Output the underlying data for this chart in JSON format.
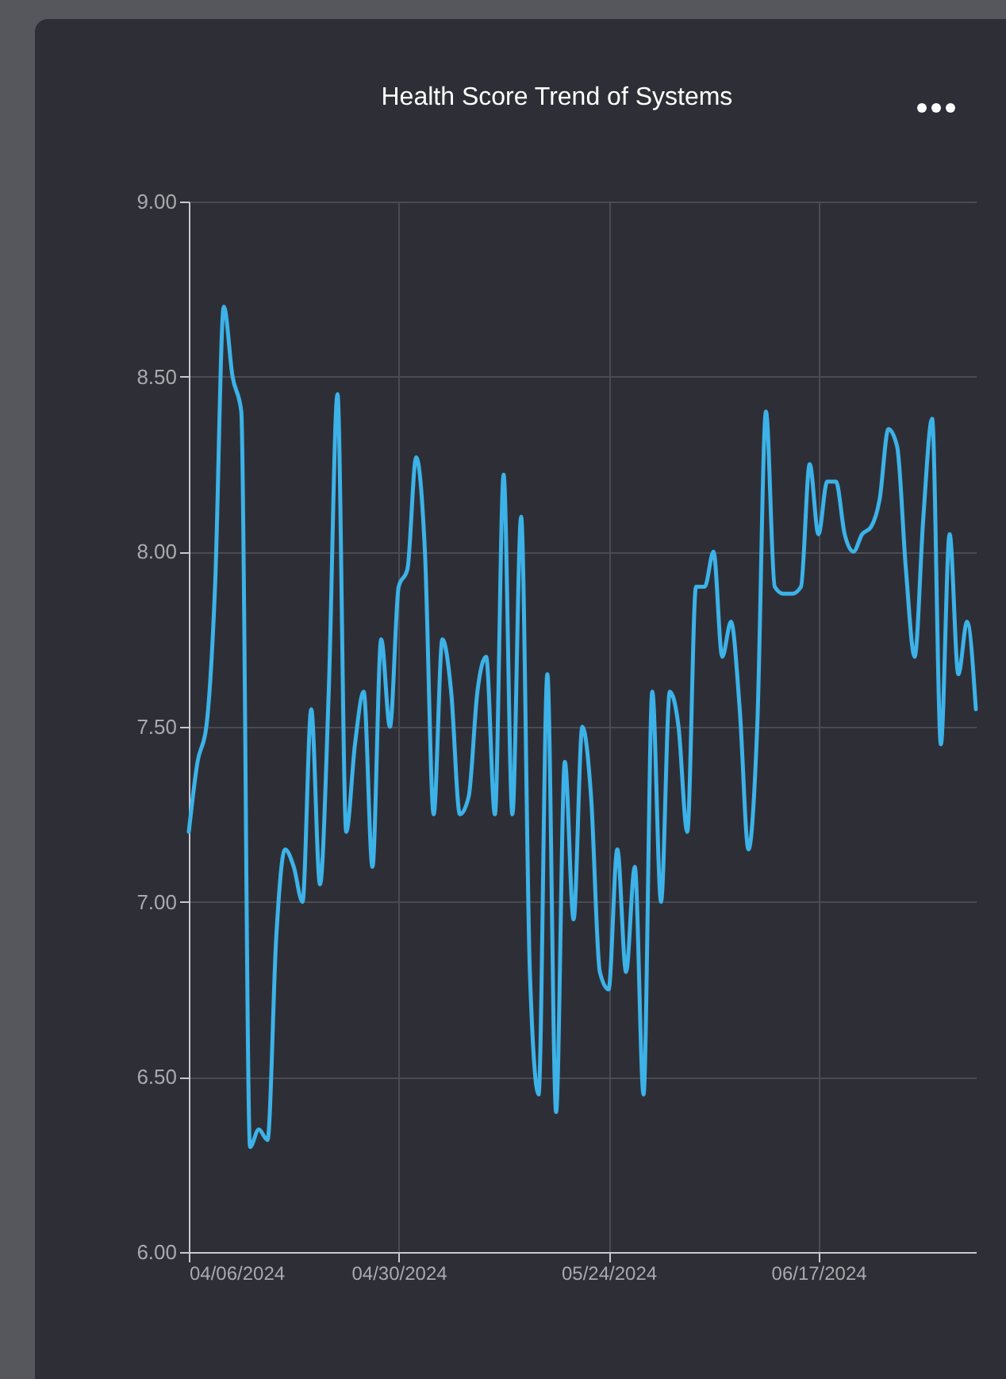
{
  "chart_data": {
    "type": "line",
    "title": "Health Score Trend of Systems",
    "x": [
      "2024-04-06",
      "2024-04-07",
      "2024-04-08",
      "2024-04-09",
      "2024-04-10",
      "2024-04-11",
      "2024-04-12",
      "2024-04-13",
      "2024-04-14",
      "2024-04-15",
      "2024-04-16",
      "2024-04-17",
      "2024-04-18",
      "2024-04-19",
      "2024-04-20",
      "2024-04-21",
      "2024-04-22",
      "2024-04-23",
      "2024-04-24",
      "2024-04-25",
      "2024-04-26",
      "2024-04-27",
      "2024-04-28",
      "2024-04-29",
      "2024-04-30",
      "2024-05-01",
      "2024-05-02",
      "2024-05-03",
      "2024-05-04",
      "2024-05-05",
      "2024-05-06",
      "2024-05-07",
      "2024-05-08",
      "2024-05-09",
      "2024-05-10",
      "2024-05-11",
      "2024-05-12",
      "2024-05-13",
      "2024-05-14",
      "2024-05-15",
      "2024-05-16",
      "2024-05-17",
      "2024-05-18",
      "2024-05-19",
      "2024-05-20",
      "2024-05-21",
      "2024-05-22",
      "2024-05-23",
      "2024-05-24",
      "2024-05-25",
      "2024-05-26",
      "2024-05-27",
      "2024-05-28",
      "2024-05-29",
      "2024-05-30",
      "2024-05-31",
      "2024-06-01",
      "2024-06-02",
      "2024-06-03",
      "2024-06-04",
      "2024-06-05",
      "2024-06-06",
      "2024-06-07",
      "2024-06-08",
      "2024-06-09",
      "2024-06-10",
      "2024-06-11",
      "2024-06-12",
      "2024-06-13",
      "2024-06-14",
      "2024-06-15",
      "2024-06-16",
      "2024-06-17",
      "2024-06-18",
      "2024-06-19",
      "2024-06-20",
      "2024-06-21",
      "2024-06-22",
      "2024-06-23",
      "2024-06-24",
      "2024-06-25",
      "2024-06-26",
      "2024-06-27",
      "2024-06-28",
      "2024-06-29",
      "2024-06-30",
      "2024-07-01",
      "2024-07-02",
      "2024-07-03",
      "2024-07-04",
      "2024-07-05"
    ],
    "series": [
      {
        "color": "#3cb2e8",
        "values": [
          7.2,
          7.4,
          7.5,
          7.9,
          8.7,
          8.5,
          8.4,
          6.3,
          6.35,
          6.32,
          6.9,
          7.15,
          7.1,
          7.0,
          7.55,
          7.05,
          7.6,
          8.45,
          7.2,
          7.45,
          7.6,
          7.1,
          7.75,
          7.5,
          7.9,
          7.95,
          8.27,
          8.0,
          7.25,
          7.75,
          7.6,
          7.25,
          7.3,
          7.6,
          7.7,
          7.25,
          8.22,
          7.25,
          8.1,
          6.8,
          6.45,
          7.65,
          6.4,
          7.4,
          6.95,
          7.5,
          7.3,
          6.8,
          6.75,
          7.15,
          6.8,
          7.1,
          6.45,
          7.6,
          7.0,
          7.6,
          7.5,
          7.2,
          7.9,
          7.9,
          8.0,
          7.7,
          7.8,
          7.55,
          7.15,
          7.5,
          8.4,
          7.9,
          7.88,
          7.88,
          7.9,
          8.25,
          8.05,
          8.2,
          8.2,
          8.05,
          8.0,
          8.05,
          8.07,
          8.15,
          8.35,
          8.3,
          7.95,
          7.7,
          8.1,
          8.38,
          7.45,
          8.05,
          7.65,
          7.8,
          7.55
        ]
      }
    ],
    "xlim": [
      "2024-04-06",
      "2024-07-05"
    ],
    "ylim": [
      6,
      9
    ],
    "yticks": [
      {
        "value": 6,
        "label": "6.00"
      },
      {
        "value": 6.5,
        "label": "6.50"
      },
      {
        "value": 7,
        "label": "7.00"
      },
      {
        "value": 7.5,
        "label": "7.50"
      },
      {
        "value": 8,
        "label": "8.00"
      },
      {
        "value": 8.5,
        "label": "8.50"
      },
      {
        "value": 9,
        "label": "9.00"
      }
    ],
    "xticks": [
      {
        "value": "2024-04-06",
        "label": "04/06/2024"
      },
      {
        "value": "2024-04-30",
        "label": "04/30/2024"
      },
      {
        "value": "2024-05-24",
        "label": "05/24/2024"
      },
      {
        "value": "2024-06-17",
        "label": "06/17/2024"
      }
    ],
    "grid": true,
    "marker": "none",
    "line_style": "solid"
  }
}
